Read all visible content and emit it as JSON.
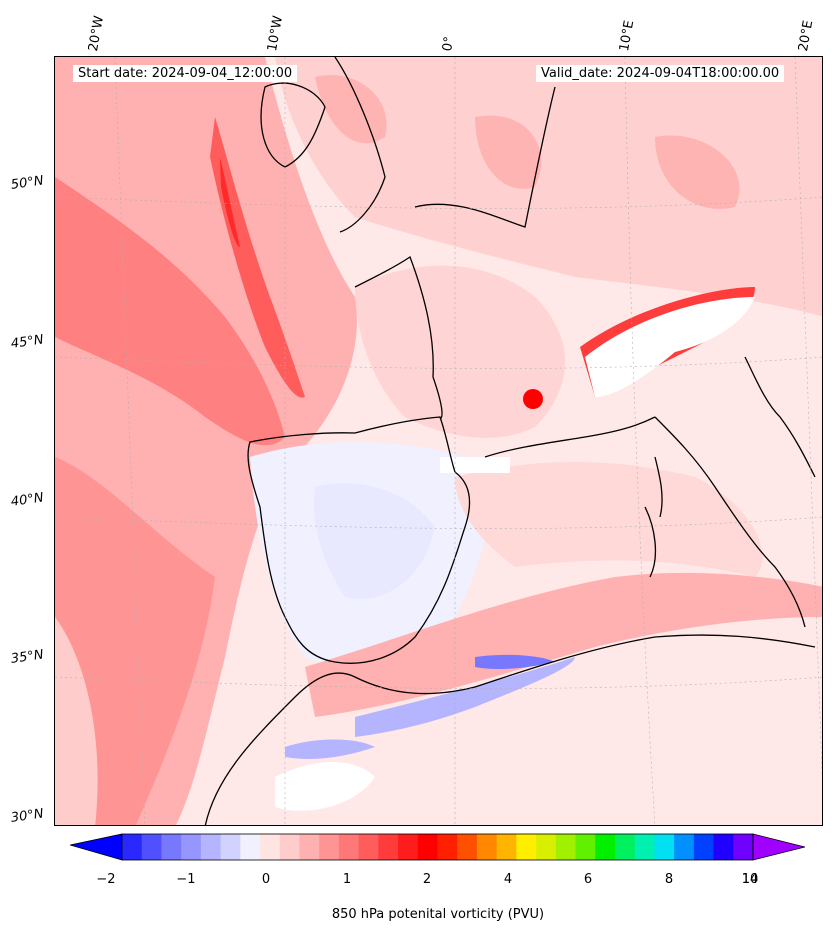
{
  "info": {
    "start_date": "Start date: 2024-09-04_12:00:00",
    "valid_date": "Valid_date: 2024-09-04T18:00:00.00"
  },
  "lon_labels": [
    "20°W",
    "10°W",
    "0°",
    "10°E",
    "20°E"
  ],
  "lat_labels": [
    "50°N",
    "45°N",
    "40°N",
    "35°N",
    "30°N"
  ],
  "colorbar": {
    "label": "850 hPa potenital vorticity (PVU)",
    "ticks": [
      "−2",
      "−1",
      "0",
      "1",
      "2",
      "4",
      "6",
      "8",
      "10",
      "14"
    ],
    "colors": [
      "#0000ff",
      "#2828ff",
      "#5050ff",
      "#7878ff",
      "#9696ff",
      "#b4b4ff",
      "#d2d2ff",
      "#f0f0ff",
      "#ffe4e4",
      "#ffcccc",
      "#ffb0b0",
      "#ff9494",
      "#ff7878",
      "#ff5c5c",
      "#ff3c3c",
      "#ff1c1c",
      "#ff0000",
      "#ff2000",
      "#ff5000",
      "#ff8800",
      "#ffb400",
      "#ffee00",
      "#d8f000",
      "#a0f000",
      "#60f000",
      "#00f000",
      "#00f060",
      "#00f0b0",
      "#00e0f0",
      "#0090ff",
      "#0040ff",
      "#2000ff",
      "#7000ff",
      "#a000ff"
    ]
  }
}
